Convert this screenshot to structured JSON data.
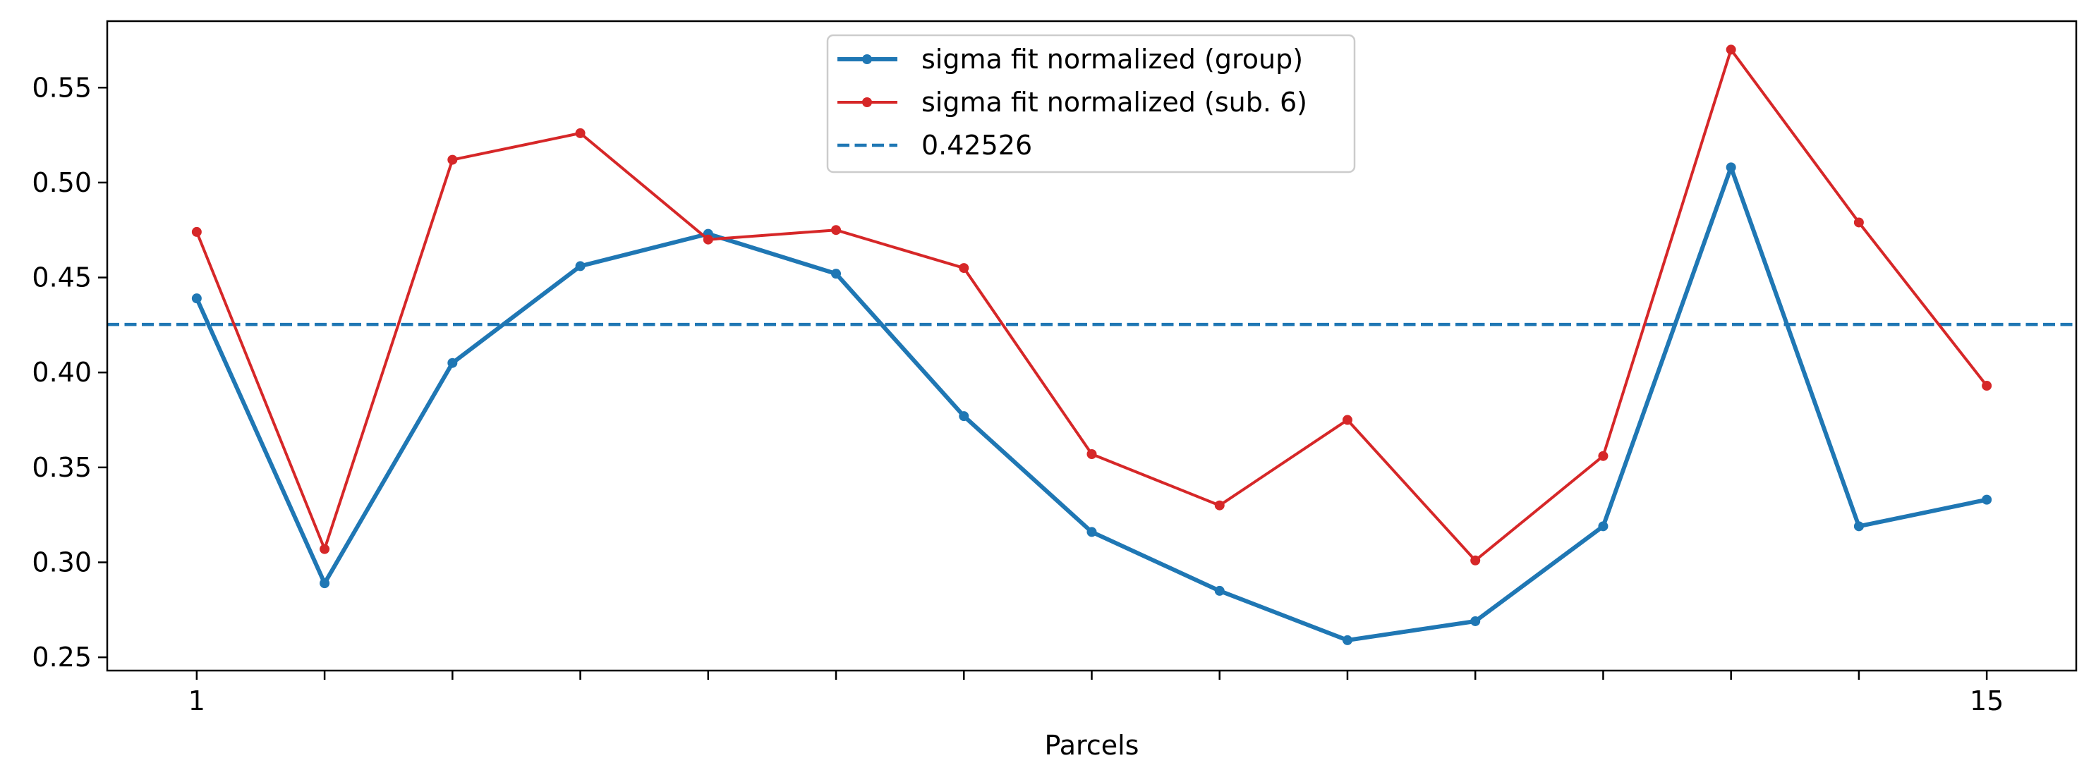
{
  "chart_data": {
    "type": "line",
    "title": "",
    "xlabel": "Parcels",
    "ylabel": "",
    "x": [
      1,
      2,
      3,
      4,
      5,
      6,
      7,
      8,
      9,
      10,
      11,
      12,
      13,
      14,
      15
    ],
    "xticks": [
      1,
      2,
      3,
      4,
      5,
      6,
      7,
      8,
      9,
      10,
      11,
      12,
      13,
      14,
      15
    ],
    "xtick_labels": [
      "1",
      "",
      "",
      "",
      "",
      "",
      "",
      "",
      "",
      "",
      "",
      "",
      "",
      "",
      "15"
    ],
    "xlim": [
      0.3,
      15.7
    ],
    "ylim": [
      0.243,
      0.585
    ],
    "yticks": [
      0.25,
      0.3,
      0.35,
      0.4,
      0.45,
      0.5,
      0.55
    ],
    "ytick_labels": [
      "0.25",
      "0.30",
      "0.35",
      "0.40",
      "0.45",
      "0.50",
      "0.55"
    ],
    "grid": false,
    "legend_position": "top-center",
    "series": [
      {
        "name": "sigma fit normalized (group)",
        "color": "#1f77b4",
        "style": "solid-thick-markers",
        "values": [
          0.439,
          0.289,
          0.405,
          0.456,
          0.473,
          0.452,
          0.377,
          0.316,
          0.285,
          0.259,
          0.269,
          0.319,
          0.508,
          0.319,
          0.333
        ]
      },
      {
        "name": "sigma fit normalized (sub. 6)",
        "color": "#d62728",
        "style": "solid-markers",
        "values": [
          0.474,
          0.307,
          0.512,
          0.526,
          0.47,
          0.475,
          0.455,
          0.357,
          0.33,
          0.375,
          0.301,
          0.356,
          0.57,
          0.479,
          0.393
        ]
      }
    ],
    "reference_line": {
      "name": "0.42526",
      "value": 0.42526,
      "color": "#1f77b4",
      "style": "dashed"
    }
  }
}
